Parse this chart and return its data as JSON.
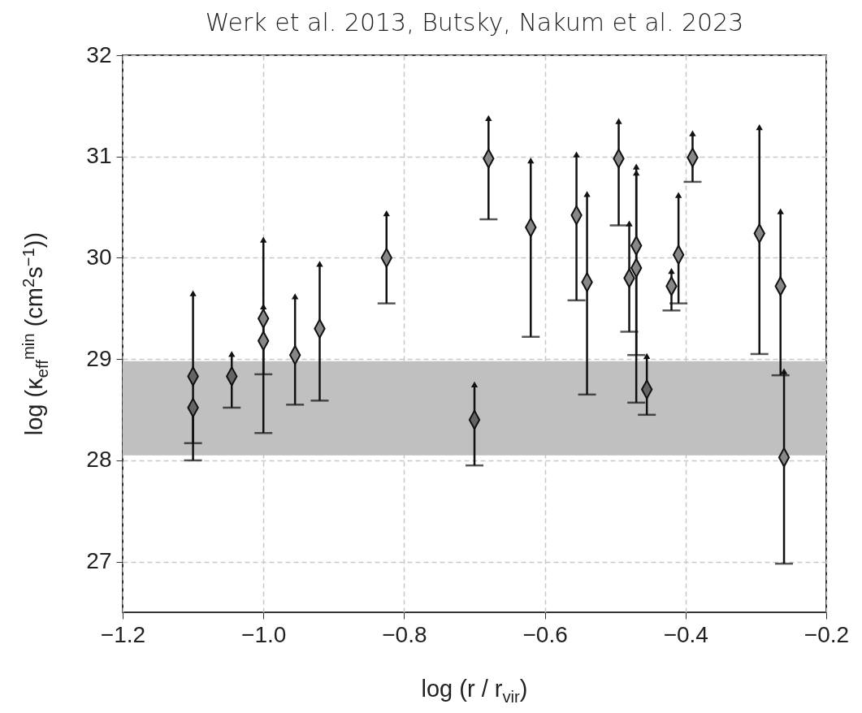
{
  "chart_data": {
    "type": "scatter",
    "title": "Werk et al. 2013, Butsky, Nakum et al. 2023",
    "xlabel": "log (r / r$_{vir}$)",
    "ylabel": "log (κ$_{eff}$$^{min}$ (cm$^{2}$s$^{−1}$))",
    "xlim": [
      -1.2,
      -0.2
    ],
    "ylim": [
      26.5,
      32
    ],
    "xticks": [
      {
        "value": -1.2,
        "label": "−1.2"
      },
      {
        "value": -1.0,
        "label": "−1.0"
      },
      {
        "value": -0.8,
        "label": "−0.8"
      },
      {
        "value": -0.6,
        "label": "−0.6"
      },
      {
        "value": -0.4,
        "label": "−0.4"
      },
      {
        "value": -0.2,
        "label": "−0.2"
      }
    ],
    "yticks": [
      27,
      28,
      29,
      30,
      31,
      32
    ],
    "grid": true,
    "marker": "diamond",
    "bands": [
      {
        "axis": "y",
        "from": 28.05,
        "to": 28.98,
        "color": "#c0c0c0"
      }
    ],
    "series": [
      {
        "color": "#646464",
        "x": [
          -1.1,
          -1.1,
          -1.045,
          -0.7,
          -0.455
        ],
        "values": [
          28.83,
          28.52,
          28.83,
          28.4,
          28.7
        ],
        "errors": [
          [
            28.17,
            29.65
          ],
          [
            28.0,
            28.52
          ],
          [
            28.52,
            29.05
          ],
          [
            27.95,
            28.75
          ],
          [
            28.45,
            29.03
          ]
        ]
      },
      {
        "color": "#878787",
        "x": [
          -1.0,
          -1.0,
          -0.955,
          -0.92,
          -0.825,
          -0.68,
          -0.62,
          -0.555,
          -0.54,
          -0.495,
          -0.48,
          -0.47,
          -0.47,
          -0.42,
          -0.41,
          -0.39,
          -0.295,
          -0.265,
          -0.26
        ],
        "values": [
          29.4,
          29.18,
          29.04,
          29.3,
          30.0,
          30.98,
          30.3,
          30.42,
          29.76,
          30.98,
          29.8,
          30.12,
          29.9,
          29.72,
          30.03,
          30.99,
          30.24,
          29.72,
          28.03
        ],
        "errors": [
          [
            28.85,
            30.18
          ],
          [
            28.27,
            29.52
          ],
          [
            28.55,
            29.62
          ],
          [
            28.59,
            29.94
          ],
          [
            29.55,
            30.44
          ],
          [
            30.38,
            31.38
          ],
          [
            29.22,
            30.96
          ],
          [
            29.58,
            31.02
          ],
          [
            28.65,
            30.63
          ],
          [
            30.32,
            31.35
          ],
          [
            29.27,
            30.34
          ],
          [
            29.04,
            30.9
          ],
          [
            28.57,
            30.84
          ],
          [
            29.48,
            29.87
          ],
          [
            29.55,
            30.62
          ],
          [
            30.75,
            31.23
          ],
          [
            29.05,
            31.29
          ],
          [
            28.84,
            30.46
          ],
          [
            26.98,
            28.88
          ]
        ]
      }
    ]
  }
}
